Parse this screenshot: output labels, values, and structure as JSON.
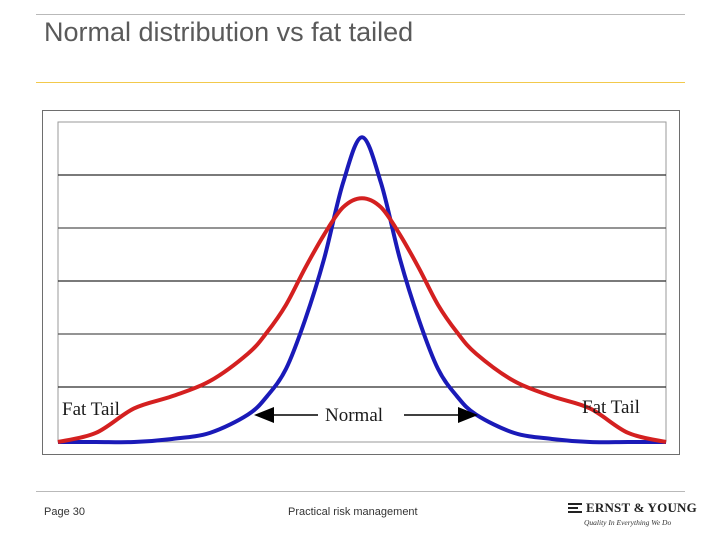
{
  "slide": {
    "title": "Normal distribution vs fat tailed",
    "footer_page": "Page 30",
    "footer_center": "Practical risk management"
  },
  "logo": {
    "name": "ERNST & YOUNG",
    "tagline": "Quality In Everything We Do"
  },
  "chart_data": {
    "type": "line",
    "title": "",
    "xlabel": "",
    "ylabel": "",
    "xlim": [
      -4,
      4
    ],
    "ylim": [
      0,
      1.05
    ],
    "grid": true,
    "annotations": {
      "left_tail": "Fat Tail",
      "right_tail": "Fat Tail",
      "center": "Normal"
    },
    "series": [
      {
        "name": "",
        "color": "#1a1ab8",
        "x": [
          -4.0,
          -3.5,
          -3.0,
          -2.5,
          -2.0,
          -1.5,
          -1.25,
          -1.0,
          -0.75,
          -0.5,
          -0.25,
          0.0,
          0.25,
          0.5,
          0.75,
          1.0,
          1.25,
          1.5,
          2.0,
          2.5,
          3.0,
          3.5,
          4.0
        ],
        "y": [
          0.0,
          0.0,
          0.0,
          0.01,
          0.03,
          0.09,
          0.15,
          0.24,
          0.4,
          0.6,
          0.85,
          1.0,
          0.85,
          0.6,
          0.4,
          0.24,
          0.15,
          0.09,
          0.03,
          0.01,
          0.0,
          0.0,
          0.0
        ]
      },
      {
        "name": "",
        "color": "#d42020",
        "x": [
          -4.0,
          -3.5,
          -3.0,
          -2.5,
          -2.0,
          -1.5,
          -1.25,
          -1.0,
          -0.75,
          -0.5,
          -0.25,
          0.0,
          0.25,
          0.5,
          0.75,
          1.0,
          1.25,
          1.5,
          2.0,
          2.5,
          3.0,
          3.5,
          4.0
        ],
        "y": [
          0.0,
          0.03,
          0.11,
          0.15,
          0.2,
          0.29,
          0.36,
          0.45,
          0.57,
          0.68,
          0.77,
          0.8,
          0.77,
          0.68,
          0.57,
          0.45,
          0.36,
          0.29,
          0.2,
          0.15,
          0.11,
          0.03,
          0.0
        ]
      }
    ]
  }
}
